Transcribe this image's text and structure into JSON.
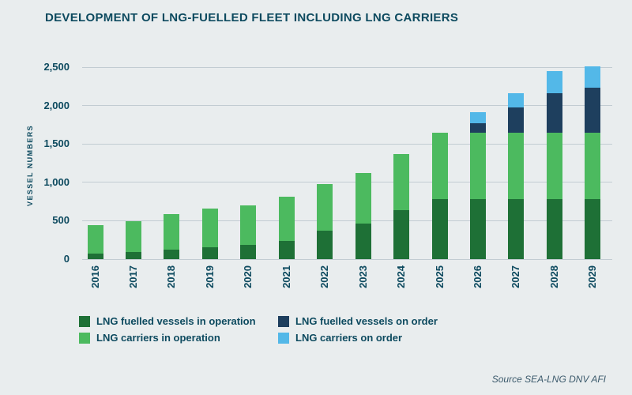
{
  "page": {
    "title": "DEVELOPMENT OF LNG-FUELLED FLEET INCLUDING LNG CARRIERS",
    "source": "Source SEA-LNG DNV AFI",
    "background": "#e9edee"
  },
  "colors": {
    "title_text": "#0d4a5f",
    "axis_text": "#0d4a5f",
    "gridline": "#c2ccd2",
    "source_text": "#3c5a6c"
  },
  "chart_data": {
    "type": "bar",
    "stacked": true,
    "title": "DEVELOPMENT OF LNG-FUELLED FLEET INCLUDING LNG CARRIERS",
    "xlabel": "",
    "ylabel": "VESSEL NUMBERS",
    "ylim": [
      0,
      2500
    ],
    "ytick_interval": 500,
    "ytick_labels": [
      "0",
      "500",
      "1,000",
      "1,500",
      "2,000",
      "2,500"
    ],
    "grid": true,
    "legend_position": "bottom",
    "categories": [
      "2016",
      "2017",
      "2018",
      "2019",
      "2020",
      "2021",
      "2022",
      "2023",
      "2024",
      "2025",
      "2026",
      "2027",
      "2028",
      "2029"
    ],
    "series": [
      {
        "name": "LNG fuelled vessels in operation",
        "color": "#1e7036",
        "values": [
          75,
          95,
          120,
          155,
          185,
          240,
          370,
          460,
          640,
          785,
          785,
          785,
          785,
          785
        ]
      },
      {
        "name": "LNG carriers in operation",
        "color": "#4cba5f",
        "values": [
          370,
          400,
          465,
          500,
          520,
          575,
          610,
          665,
          730,
          860,
          860,
          860,
          860,
          860
        ]
      },
      {
        "name": "LNG fuelled vessels on order",
        "color": "#1e3f5e",
        "values": [
          0,
          0,
          0,
          0,
          0,
          0,
          0,
          0,
          0,
          0,
          130,
          330,
          520,
          585
        ]
      },
      {
        "name": "LNG carriers on order",
        "color": "#53b8e8",
        "values": [
          0,
          0,
          0,
          0,
          0,
          0,
          0,
          0,
          0,
          0,
          135,
          190,
          285,
          285
        ]
      }
    ],
    "totals": [
      445,
      495,
      585,
      655,
      705,
      815,
      980,
      1125,
      1370,
      1645,
      1910,
      2165,
      2450,
      2515
    ]
  }
}
